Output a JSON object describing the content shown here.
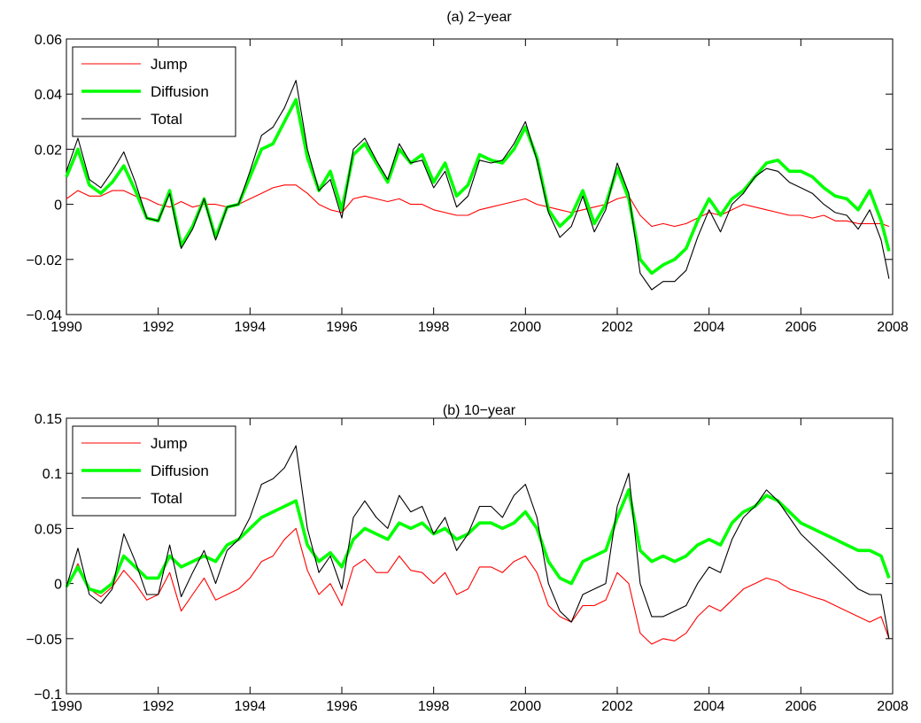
{
  "chart_data": [
    {
      "type": "line",
      "title": "(a) 2−year",
      "xlim": [
        1990,
        2008
      ],
      "ylim": [
        -0.04,
        0.06
      ],
      "xticks": [
        1990,
        1992,
        1994,
        1996,
        1998,
        2000,
        2002,
        2004,
        2006,
        2008
      ],
      "yticks": [
        -0.04,
        -0.02,
        0,
        0.02,
        0.04,
        0.06
      ],
      "xticklabels": [
        "1990",
        "1992",
        "1994",
        "1996",
        "1998",
        "2000",
        "2002",
        "2004",
        "2006",
        "2008"
      ],
      "yticklabels": [
        "−0.04",
        "−0.02",
        "0",
        "0.02",
        "0.04",
        "0.06"
      ],
      "legend_position": "top-left",
      "grid": false,
      "x": [
        1990.0,
        1990.25,
        1990.5,
        1990.75,
        1991.0,
        1991.25,
        1991.5,
        1991.75,
        1992.0,
        1992.25,
        1992.5,
        1992.75,
        1993.0,
        1993.25,
        1993.5,
        1993.75,
        1994.0,
        1994.25,
        1994.5,
        1994.75,
        1995.0,
        1995.25,
        1995.5,
        1995.75,
        1996.0,
        1996.25,
        1996.5,
        1996.75,
        1997.0,
        1997.25,
        1997.5,
        1997.75,
        1998.0,
        1998.25,
        1998.5,
        1998.75,
        1999.0,
        1999.25,
        1999.5,
        1999.75,
        2000.0,
        2000.25,
        2000.5,
        2000.75,
        2001.0,
        2001.25,
        2001.5,
        2001.75,
        2002.0,
        2002.25,
        2002.5,
        2002.75,
        2003.0,
        2003.25,
        2003.5,
        2003.75,
        2004.0,
        2004.25,
        2004.5,
        2004.75,
        2005.0,
        2005.25,
        2005.5,
        2005.75,
        2006.0,
        2006.25,
        2006.5,
        2006.75,
        2007.0,
        2007.25,
        2007.5,
        2007.75,
        2007.92
      ],
      "series": [
        {
          "name": "Jump",
          "color": "#ff0000",
          "width": 1.1,
          "values": [
            0.002,
            0.005,
            0.003,
            0.003,
            0.005,
            0.005,
            0.003,
            0.002,
            0.0,
            -0.001,
            0.001,
            -0.001,
            0.0,
            0.0,
            -0.001,
            0.0,
            0.002,
            0.004,
            0.006,
            0.007,
            0.007,
            0.004,
            0.0,
            -0.002,
            -0.003,
            0.002,
            0.003,
            0.002,
            0.001,
            0.002,
            0.0,
            0.0,
            -0.002,
            -0.003,
            -0.004,
            -0.004,
            -0.002,
            -0.001,
            0.0,
            0.001,
            0.002,
            0.0,
            -0.001,
            -0.002,
            -0.003,
            -0.002,
            -0.001,
            0.0,
            0.002,
            0.003,
            -0.004,
            -0.008,
            -0.007,
            -0.008,
            -0.007,
            -0.005,
            -0.003,
            -0.004,
            -0.002,
            0.0,
            -0.001,
            -0.002,
            -0.003,
            -0.004,
            -0.004,
            -0.005,
            -0.004,
            -0.006,
            -0.006,
            -0.007,
            -0.007,
            -0.007,
            -0.008
          ]
        },
        {
          "name": "Diffusion",
          "color": "#00ff00",
          "width": 3.6,
          "values": [
            0.01,
            0.02,
            0.007,
            0.004,
            0.008,
            0.014,
            0.005,
            -0.005,
            -0.006,
            0.005,
            -0.015,
            -0.008,
            0.002,
            -0.012,
            -0.001,
            0.0,
            0.01,
            0.02,
            0.022,
            0.03,
            0.038,
            0.017,
            0.005,
            0.012,
            -0.002,
            0.018,
            0.022,
            0.015,
            0.008,
            0.02,
            0.015,
            0.018,
            0.008,
            0.015,
            0.003,
            0.007,
            0.018,
            0.016,
            0.015,
            0.02,
            0.028,
            0.017,
            -0.002,
            -0.008,
            -0.004,
            0.005,
            -0.007,
            0.0,
            0.013,
            0.002,
            -0.02,
            -0.025,
            -0.022,
            -0.02,
            -0.016,
            -0.006,
            0.002,
            -0.004,
            0.002,
            0.005,
            0.01,
            0.015,
            0.016,
            0.012,
            0.012,
            0.01,
            0.006,
            0.003,
            0.002,
            -0.002,
            0.005,
            -0.006,
            -0.017
          ]
        },
        {
          "name": "Total",
          "color": "#000000",
          "width": 1.1,
          "values": [
            0.012,
            0.024,
            0.009,
            0.006,
            0.012,
            0.019,
            0.008,
            -0.005,
            -0.006,
            0.004,
            -0.016,
            -0.009,
            0.002,
            -0.013,
            -0.001,
            0.0,
            0.012,
            0.025,
            0.028,
            0.035,
            0.045,
            0.02,
            0.005,
            0.009,
            -0.005,
            0.02,
            0.024,
            0.016,
            0.009,
            0.022,
            0.015,
            0.016,
            0.006,
            0.012,
            -0.001,
            0.003,
            0.016,
            0.015,
            0.016,
            0.022,
            0.03,
            0.016,
            -0.003,
            -0.012,
            -0.008,
            0.003,
            -0.01,
            -0.002,
            0.015,
            0.004,
            -0.025,
            -0.031,
            -0.028,
            -0.028,
            -0.024,
            -0.012,
            -0.002,
            -0.01,
            0.0,
            0.004,
            0.01,
            0.013,
            0.012,
            0.008,
            0.006,
            0.004,
            0.0,
            -0.003,
            -0.004,
            -0.009,
            -0.002,
            -0.013,
            -0.027
          ]
        }
      ]
    },
    {
      "type": "line",
      "title": "(b) 10−year",
      "xlim": [
        1990,
        2008
      ],
      "ylim": [
        -0.1,
        0.15
      ],
      "xticks": [
        1990,
        1992,
        1994,
        1996,
        1998,
        2000,
        2002,
        2004,
        2006,
        2008
      ],
      "yticks": [
        -0.1,
        -0.05,
        0,
        0.05,
        0.1,
        0.15
      ],
      "xticklabels": [
        "1990",
        "1992",
        "1994",
        "1996",
        "1998",
        "2000",
        "2002",
        "2004",
        "2006",
        "2008"
      ],
      "yticklabels": [
        "−0.1",
        "−0.05",
        "0",
        "0.05",
        "0.1",
        "0.15"
      ],
      "legend_position": "top-left",
      "grid": false,
      "x": [
        1990.0,
        1990.25,
        1990.5,
        1990.75,
        1991.0,
        1991.25,
        1991.5,
        1991.75,
        1992.0,
        1992.25,
        1992.5,
        1992.75,
        1993.0,
        1993.25,
        1993.5,
        1993.75,
        1994.0,
        1994.25,
        1994.5,
        1994.75,
        1995.0,
        1995.25,
        1995.5,
        1995.75,
        1996.0,
        1996.25,
        1996.5,
        1996.75,
        1997.0,
        1997.25,
        1997.5,
        1997.75,
        1998.0,
        1998.25,
        1998.5,
        1998.75,
        1999.0,
        1999.25,
        1999.5,
        1999.75,
        2000.0,
        2000.25,
        2000.5,
        2000.75,
        2001.0,
        2001.25,
        2001.5,
        2001.75,
        2002.0,
        2002.25,
        2002.5,
        2002.75,
        2003.0,
        2003.25,
        2003.5,
        2003.75,
        2004.0,
        2004.25,
        2004.5,
        2004.75,
        2005.0,
        2005.25,
        2005.5,
        2005.75,
        2006.0,
        2006.25,
        2006.5,
        2006.75,
        2007.0,
        2007.25,
        2007.5,
        2007.75,
        2007.92
      ],
      "series": [
        {
          "name": "Jump",
          "color": "#ff0000",
          "width": 1.1,
          "values": [
            -0.003,
            0.018,
            -0.005,
            -0.012,
            -0.003,
            0.012,
            0.0,
            -0.015,
            -0.01,
            0.01,
            -0.025,
            -0.01,
            0.005,
            -0.015,
            -0.01,
            -0.005,
            0.005,
            0.02,
            0.025,
            0.04,
            0.05,
            0.012,
            -0.01,
            0.0,
            -0.02,
            0.015,
            0.022,
            0.01,
            0.01,
            0.025,
            0.012,
            0.01,
            0.0,
            0.01,
            -0.01,
            -0.005,
            0.015,
            0.015,
            0.01,
            0.02,
            0.025,
            0.01,
            -0.02,
            -0.03,
            -0.035,
            -0.02,
            -0.02,
            -0.015,
            0.01,
            0.0,
            -0.045,
            -0.055,
            -0.05,
            -0.052,
            -0.045,
            -0.03,
            -0.02,
            -0.025,
            -0.015,
            -0.005,
            0.0,
            0.005,
            0.002,
            -0.005,
            -0.008,
            -0.012,
            -0.015,
            -0.02,
            -0.025,
            -0.03,
            -0.035,
            -0.03,
            -0.05
          ]
        },
        {
          "name": "Diffusion",
          "color": "#00ff00",
          "width": 3.6,
          "values": [
            -0.003,
            0.015,
            -0.005,
            -0.008,
            0.0,
            0.025,
            0.015,
            0.005,
            0.005,
            0.025,
            0.015,
            0.02,
            0.025,
            0.02,
            0.035,
            0.04,
            0.05,
            0.06,
            0.065,
            0.07,
            0.075,
            0.035,
            0.02,
            0.028,
            0.015,
            0.04,
            0.05,
            0.045,
            0.04,
            0.055,
            0.05,
            0.055,
            0.045,
            0.05,
            0.04,
            0.045,
            0.055,
            0.055,
            0.05,
            0.055,
            0.065,
            0.05,
            0.02,
            0.005,
            0.0,
            0.02,
            0.025,
            0.03,
            0.06,
            0.085,
            0.03,
            0.02,
            0.025,
            0.02,
            0.025,
            0.035,
            0.04,
            0.035,
            0.055,
            0.065,
            0.07,
            0.08,
            0.075,
            0.065,
            0.055,
            0.05,
            0.045,
            0.04,
            0.035,
            0.03,
            0.03,
            0.025,
            0.005
          ]
        },
        {
          "name": "Total",
          "color": "#000000",
          "width": 1.1,
          "values": [
            -0.003,
            0.032,
            -0.01,
            -0.018,
            -0.005,
            0.045,
            0.02,
            -0.01,
            -0.01,
            0.035,
            -0.012,
            0.01,
            0.03,
            0.0,
            0.03,
            0.04,
            0.06,
            0.09,
            0.095,
            0.105,
            0.125,
            0.05,
            0.01,
            0.025,
            -0.005,
            0.06,
            0.075,
            0.06,
            0.05,
            0.08,
            0.065,
            0.07,
            0.045,
            0.06,
            0.03,
            0.045,
            0.07,
            0.07,
            0.06,
            0.08,
            0.09,
            0.06,
            0.0,
            -0.025,
            -0.035,
            -0.01,
            -0.005,
            0.0,
            0.07,
            0.1,
            0.0,
            -0.03,
            -0.03,
            -0.025,
            -0.02,
            0.0,
            0.015,
            0.01,
            0.04,
            0.06,
            0.07,
            0.085,
            0.075,
            0.06,
            0.045,
            0.035,
            0.025,
            0.015,
            0.005,
            -0.005,
            -0.01,
            -0.01,
            -0.05
          ]
        }
      ]
    }
  ]
}
